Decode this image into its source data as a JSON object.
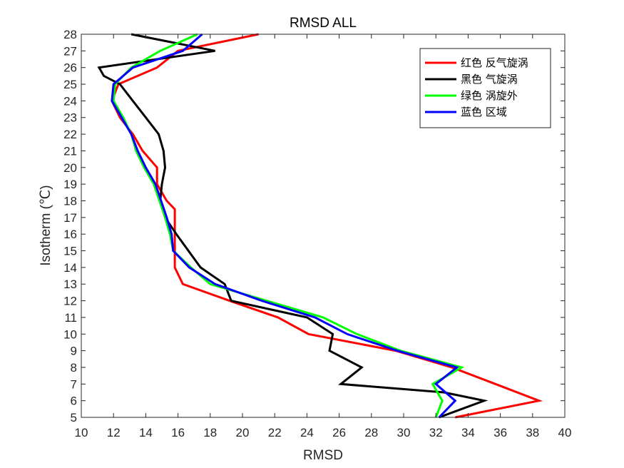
{
  "chart_data": {
    "type": "line",
    "title": "RMSD ALL",
    "xlabel": "RMSD",
    "ylabel": "Isotherm (℃)",
    "xlim": [
      10,
      40
    ],
    "ylim": [
      5,
      28
    ],
    "xticks": [
      10,
      12,
      14,
      16,
      18,
      20,
      22,
      24,
      26,
      28,
      30,
      32,
      34,
      36,
      38,
      40
    ],
    "yticks": [
      5,
      6,
      7,
      8,
      9,
      10,
      11,
      12,
      13,
      14,
      15,
      16,
      17,
      18,
      19,
      20,
      21,
      22,
      23,
      24,
      25,
      26,
      27,
      28
    ],
    "grid": false,
    "legend_position": "top-right",
    "series": [
      {
        "name": "红色 反气旋涡",
        "color": "#ff0000",
        "x": [
          33.2,
          38.4,
          35.7,
          33.0,
          29.5,
          24.1,
          22.2,
          19.2,
          16.3,
          15.8,
          15.8,
          15.8,
          15.8,
          15.8,
          15.3,
          14.7,
          14.7,
          13.8,
          13.2,
          12.4,
          11.9,
          12.3,
          14.7,
          16.0,
          21.0
        ],
        "y": [
          5,
          6,
          7,
          8,
          9,
          10,
          11,
          12,
          13,
          14,
          15,
          16,
          17,
          17.5,
          18,
          19,
          20,
          21,
          22,
          23,
          24,
          25,
          26,
          27,
          28
        ]
      },
      {
        "name": "黑色 气旋涡",
        "color": "#000000",
        "x": [
          32.2,
          35.0,
          32.5,
          26.1,
          27.4,
          25.4,
          25.6,
          24.0,
          19.3,
          18.9,
          17.4,
          15.9,
          15.2,
          14.9,
          15.0,
          15.2,
          15.1,
          14.8,
          14.0,
          13.2,
          12.4,
          11.4,
          11.1,
          18.3,
          13.1
        ],
        "y": [
          5,
          6,
          6.5,
          7,
          8,
          9,
          10,
          11,
          12,
          13,
          14,
          16,
          17,
          18,
          19,
          20,
          21,
          22,
          23,
          24,
          25,
          25.5,
          26,
          27,
          28
        ]
      },
      {
        "name": "绿色 涡旋外",
        "color": "#00ff00",
        "x": [
          32.0,
          32.4,
          31.8,
          33.6,
          29.8,
          27.1,
          25.0,
          21.5,
          18.0,
          16.8,
          15.7,
          15.5,
          15.2,
          14.5,
          13.9,
          13.4,
          13.1,
          12.6,
          12.0,
          12.1,
          13.1,
          14.9,
          17.2
        ],
        "y": [
          5,
          6,
          7,
          8,
          9,
          10,
          11,
          12,
          13,
          14,
          15,
          16,
          17,
          19,
          20,
          21,
          22,
          23,
          24,
          25,
          26,
          27,
          28
        ]
      },
      {
        "name": "蓝色 区域",
        "color": "#0000ff",
        "x": [
          32.2,
          33.2,
          32.0,
          33.3,
          29.6,
          26.5,
          24.5,
          21.2,
          18.3,
          16.7,
          15.7,
          15.6,
          15.3,
          14.6,
          14.0,
          13.5,
          13.1,
          12.5,
          11.9,
          12.0,
          13.2,
          16.3,
          17.5
        ],
        "y": [
          5,
          6,
          7,
          8,
          9,
          10,
          11,
          12,
          13,
          14,
          15,
          16,
          17,
          19,
          20,
          21,
          22,
          23,
          24,
          25,
          26,
          27,
          28
        ]
      }
    ]
  }
}
